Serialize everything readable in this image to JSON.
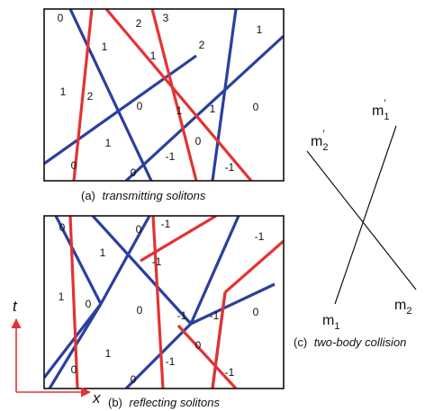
{
  "panel_a": {
    "caption_prefix": "(a)",
    "caption_text": "transmitting solitons",
    "region_labels": [
      "0",
      "2",
      "3",
      "1",
      "1",
      "2",
      "1",
      "1",
      "2",
      "0",
      "1",
      "1",
      "0",
      "1",
      "0",
      "-1",
      "0",
      "-1",
      "0"
    ]
  },
  "panel_b": {
    "caption_prefix": "(b)",
    "caption_text": "reflecting solitons",
    "region_labels": [
      "0",
      "0",
      "-1",
      "-1",
      "1",
      "-1",
      "1",
      "0",
      "0",
      "-1",
      "-1",
      "0",
      "1",
      "0",
      "0",
      "-1",
      "0",
      "-1"
    ]
  },
  "panel_c": {
    "caption_prefix": "(c)",
    "caption_text": "two-body collision",
    "labels": {
      "m1_prime": {
        "base": "m",
        "sub": "1",
        "sup": "′"
      },
      "m2_prime": {
        "base": "m",
        "sub": "2",
        "sup": "′"
      },
      "m1": {
        "base": "m",
        "sub": "1"
      },
      "m2": {
        "base": "m",
        "sub": "2"
      }
    }
  },
  "axes": {
    "t_label": "t",
    "x_label": "x"
  },
  "colors": {
    "blue": "#2b3f9e",
    "red": "#e53232",
    "frame": "#111111"
  }
}
